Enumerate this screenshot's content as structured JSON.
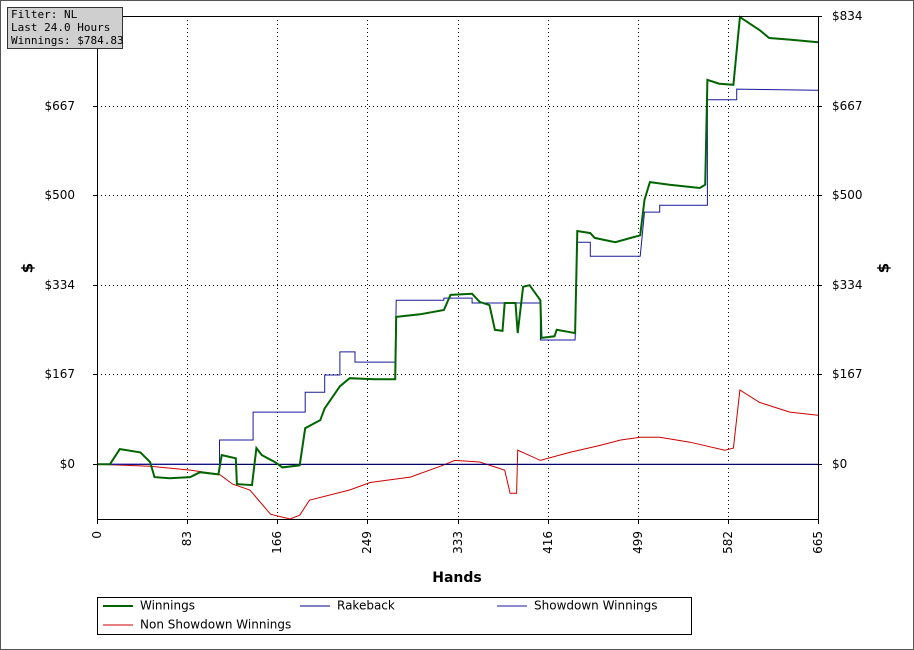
{
  "chart_data": {
    "type": "line",
    "annotation": [
      "Filter: NL",
      "Last 24.0 Hours",
      "Winnings: $784.83"
    ],
    "xlabel": "Hands",
    "ylabel": "$",
    "xlim": [
      0,
      665
    ],
    "xticks": [
      0,
      83,
      166,
      249,
      333,
      416,
      499,
      582,
      665
    ],
    "ylim": [
      -102,
      834
    ],
    "yticks": [
      {
        "value": 0,
        "label": "$0"
      },
      {
        "value": 167,
        "label": "$167"
      },
      {
        "value": 334,
        "label": "$334"
      },
      {
        "value": 500,
        "label": "$500"
      },
      {
        "value": 667,
        "label": "$667"
      },
      {
        "value": 834,
        "label": "$834"
      }
    ],
    "grid": true,
    "series": [
      {
        "name": "Winnings",
        "color": "#006400",
        "x": [
          0,
          12,
          21,
          40,
          49,
          53,
          67,
          86,
          95,
          112,
          115,
          128,
          129,
          143,
          147,
          152,
          164,
          171,
          187,
          192,
          206,
          210,
          224,
          233,
          256,
          275,
          276,
          298,
          320,
          326,
          346,
          353,
          362,
          367,
          374,
          376,
          386,
          388,
          393,
          399,
          409,
          410,
          422,
          424,
          441,
          443,
          455,
          459,
          478,
          501,
          505,
          510,
          528,
          556,
          561,
          563,
          574,
          587,
          593,
          611,
          620,
          639,
          665
        ],
        "values": [
          0,
          0,
          28,
          22,
          4,
          -24,
          -26,
          -24,
          -15,
          -19,
          17,
          11,
          -37,
          -39,
          30,
          17,
          4,
          -6,
          -2,
          67,
          82,
          104,
          145,
          160,
          158,
          158,
          274,
          279,
          287,
          315,
          317,
          302,
          296,
          250,
          248,
          300,
          300,
          244,
          330,
          333,
          305,
          235,
          238,
          250,
          244,
          434,
          430,
          421,
          413,
          426,
          492,
          525,
          520,
          514,
          520,
          715,
          708,
          706,
          832,
          808,
          793,
          790,
          785
        ]
      },
      {
        "name": "Rakeback",
        "color": "#00008b",
        "x": [
          0,
          665
        ],
        "values": [
          0,
          0
        ]
      },
      {
        "name": "Showdown Winnings",
        "color": "#1a1a9c",
        "x": [
          0,
          113,
          113,
          144,
          144,
          192,
          192,
          210,
          210,
          224,
          224,
          238,
          238,
          275,
          276,
          320,
          320,
          346,
          346,
          386,
          409,
          409,
          441,
          443,
          455,
          455,
          501,
          505,
          519,
          519,
          563,
          563,
          590,
          590,
          665
        ],
        "values": [
          0,
          0,
          45,
          45,
          97,
          97,
          134,
          134,
          166,
          166,
          209,
          209,
          190,
          190,
          305,
          305,
          309,
          309,
          300,
          300,
          300,
          231,
          231,
          413,
          413,
          387,
          387,
          469,
          469,
          482,
          482,
          678,
          678,
          698,
          696
        ]
      },
      {
        "name": "Non Showdown Winnings",
        "color": "#cc0000",
        "x": [
          0,
          49,
          86,
          113,
          125,
          141,
          160,
          178,
          187,
          196,
          233,
          252,
          289,
          319,
          330,
          353,
          376,
          381,
          387,
          388,
          409,
          436,
          464,
          483,
          501,
          519,
          547,
          579,
          587,
          593,
          611,
          639,
          665
        ],
        "values": [
          0,
          -4,
          -11,
          -19,
          -37,
          -48,
          -93,
          -102,
          -95,
          -67,
          -48,
          -34,
          -24,
          -2,
          7,
          4,
          -11,
          -54,
          -54,
          26,
          7,
          22,
          35,
          45,
          50,
          50,
          41,
          26,
          30,
          138,
          115,
          97,
          91
        ]
      }
    ]
  }
}
